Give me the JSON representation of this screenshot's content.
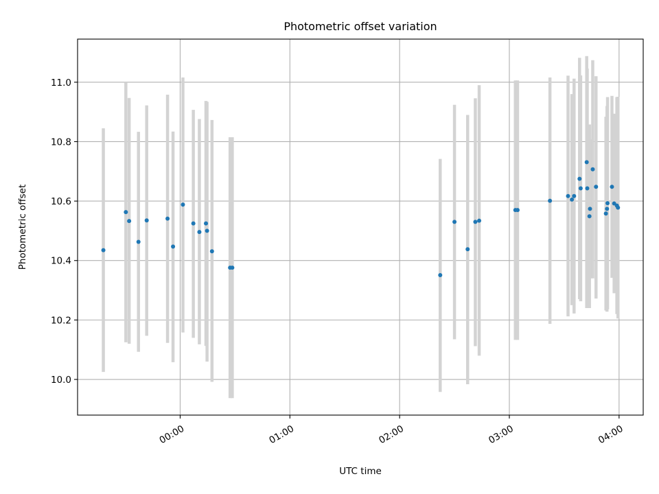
{
  "chart_data": {
    "type": "scatter",
    "title": "Photometric offset variation",
    "xlabel": "UTC time",
    "ylabel": "Photometric offset",
    "x_unit": "UTC time of day (hours, negative = before 00:00)",
    "xlim": [
      -0.935,
      4.22
    ],
    "ylim": [
      9.88,
      11.145
    ],
    "x_ticks": [
      {
        "value": 0,
        "label": "00:00"
      },
      {
        "value": 1,
        "label": "01:00"
      },
      {
        "value": 2,
        "label": "02:00"
      },
      {
        "value": 3,
        "label": "03:00"
      },
      {
        "value": 4,
        "label": "04:00"
      }
    ],
    "y_ticks": [
      {
        "value": 10.0,
        "label": "10.0"
      },
      {
        "value": 10.2,
        "label": "10.2"
      },
      {
        "value": 10.4,
        "label": "10.4"
      },
      {
        "value": 10.6,
        "label": "10.6"
      },
      {
        "value": 10.8,
        "label": "10.8"
      },
      {
        "value": 11.0,
        "label": "11.0"
      }
    ],
    "grid": true,
    "marker_color": "#1f77b4",
    "errorbar_color": "#d3d3d3",
    "points": [
      {
        "x": -0.7,
        "y": 10.435,
        "ylow": 10.025,
        "yhigh": 10.845
      },
      {
        "x": -0.495,
        "y": 10.563,
        "ylow": 10.125,
        "yhigh": 11.0
      },
      {
        "x": -0.465,
        "y": 10.533,
        "ylow": 10.12,
        "yhigh": 10.947
      },
      {
        "x": -0.38,
        "y": 10.463,
        "ylow": 10.093,
        "yhigh": 10.833
      },
      {
        "x": -0.305,
        "y": 10.535,
        "ylow": 10.147,
        "yhigh": 10.922
      },
      {
        "x": -0.115,
        "y": 10.541,
        "ylow": 10.123,
        "yhigh": 10.958
      },
      {
        "x": -0.065,
        "y": 10.447,
        "ylow": 10.058,
        "yhigh": 10.834
      },
      {
        "x": 0.025,
        "y": 10.588,
        "ylow": 10.158,
        "yhigh": 11.016
      },
      {
        "x": 0.12,
        "y": 10.525,
        "ylow": 10.14,
        "yhigh": 10.907
      },
      {
        "x": 0.175,
        "y": 10.496,
        "ylow": 10.118,
        "yhigh": 10.876
      },
      {
        "x": 0.235,
        "y": 10.525,
        "ylow": 10.113,
        "yhigh": 10.937
      },
      {
        "x": 0.245,
        "y": 10.5,
        "ylow": 10.06,
        "yhigh": 10.934
      },
      {
        "x": 0.29,
        "y": 10.431,
        "ylow": 9.992,
        "yhigh": 10.873
      },
      {
        "x": 0.455,
        "y": 10.376,
        "ylow": 9.937,
        "yhigh": 10.815
      },
      {
        "x": 0.475,
        "y": 10.376,
        "ylow": 9.937,
        "yhigh": 10.815
      },
      {
        "x": 2.37,
        "y": 10.351,
        "ylow": 9.958,
        "yhigh": 10.742
      },
      {
        "x": 2.5,
        "y": 10.53,
        "ylow": 10.135,
        "yhigh": 10.924
      },
      {
        "x": 2.62,
        "y": 10.438,
        "ylow": 9.984,
        "yhigh": 10.89
      },
      {
        "x": 2.69,
        "y": 10.53,
        "ylow": 10.112,
        "yhigh": 10.946
      },
      {
        "x": 2.725,
        "y": 10.534,
        "ylow": 10.08,
        "yhigh": 10.99
      },
      {
        "x": 3.055,
        "y": 10.57,
        "ylow": 10.133,
        "yhigh": 11.006
      },
      {
        "x": 3.075,
        "y": 10.57,
        "ylow": 10.133,
        "yhigh": 11.006
      },
      {
        "x": 3.37,
        "y": 10.601,
        "ylow": 10.187,
        "yhigh": 11.016
      },
      {
        "x": 3.535,
        "y": 10.617,
        "ylow": 10.212,
        "yhigh": 11.022
      },
      {
        "x": 3.57,
        "y": 10.605,
        "ylow": 10.25,
        "yhigh": 10.96
      },
      {
        "x": 3.59,
        "y": 10.617,
        "ylow": 10.222,
        "yhigh": 11.012
      },
      {
        "x": 3.64,
        "y": 10.675,
        "ylow": 10.27,
        "yhigh": 11.082
      },
      {
        "x": 3.65,
        "y": 10.643,
        "ylow": 10.263,
        "yhigh": 11.023
      },
      {
        "x": 3.705,
        "y": 10.731,
        "ylow": 10.24,
        "yhigh": 11.088
      },
      {
        "x": 3.71,
        "y": 10.643,
        "ylow": 10.24,
        "yhigh": 11.046
      },
      {
        "x": 3.73,
        "y": 10.549,
        "ylow": 10.24,
        "yhigh": 10.858
      },
      {
        "x": 3.735,
        "y": 10.574,
        "ylow": 10.34,
        "yhigh": 10.808
      },
      {
        "x": 3.76,
        "y": 10.707,
        "ylow": 10.34,
        "yhigh": 11.074
      },
      {
        "x": 3.79,
        "y": 10.648,
        "ylow": 10.272,
        "yhigh": 11.02
      },
      {
        "x": 3.88,
        "y": 10.558,
        "ylow": 10.232,
        "yhigh": 10.884
      },
      {
        "x": 3.89,
        "y": 10.574,
        "ylow": 10.228,
        "yhigh": 10.92
      },
      {
        "x": 3.895,
        "y": 10.593,
        "ylow": 10.236,
        "yhigh": 10.95
      },
      {
        "x": 3.935,
        "y": 10.648,
        "ylow": 10.342,
        "yhigh": 10.954
      },
      {
        "x": 3.955,
        "y": 10.592,
        "ylow": 10.29,
        "yhigh": 10.894
      },
      {
        "x": 3.98,
        "y": 10.585,
        "ylow": 10.22,
        "yhigh": 10.95
      },
      {
        "x": 3.99,
        "y": 10.578,
        "ylow": 10.205,
        "yhigh": 10.951
      }
    ]
  }
}
